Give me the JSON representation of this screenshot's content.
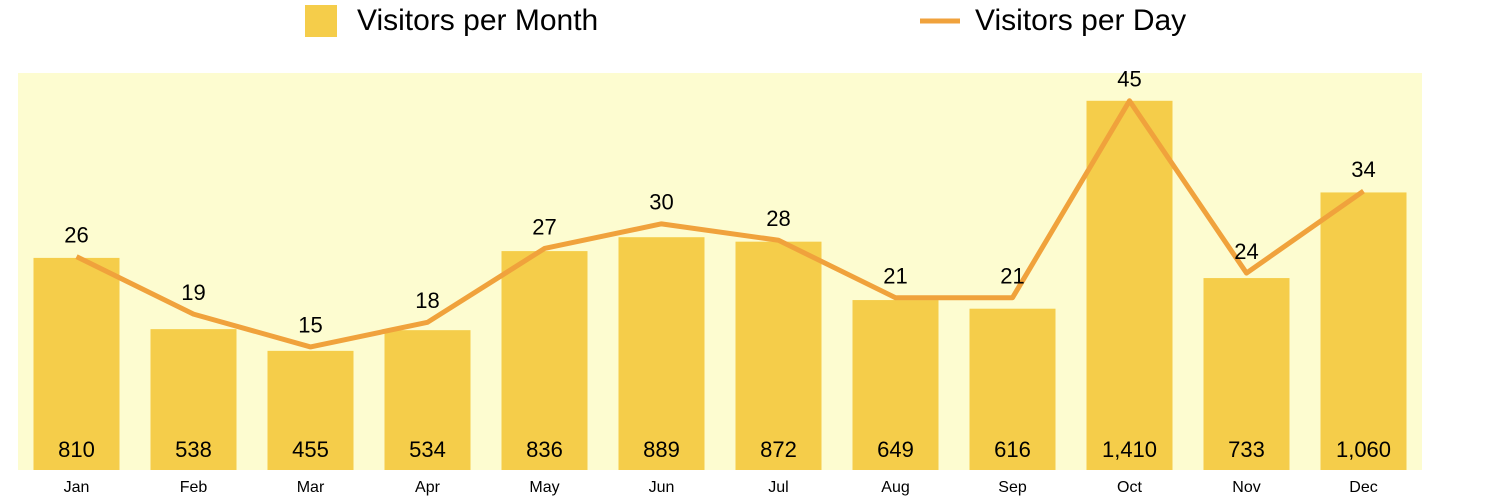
{
  "chart_data": {
    "type": "bar",
    "categories": [
      "Jan",
      "Feb",
      "Mar",
      "Apr",
      "May",
      "Jun",
      "Jul",
      "Aug",
      "Sep",
      "Oct",
      "Nov",
      "Dec"
    ],
    "series": [
      {
        "name": "Visitors per Month",
        "type": "bar",
        "color": "#f5cd4a",
        "values": [
          810,
          538,
          455,
          534,
          836,
          889,
          872,
          649,
          616,
          1410,
          733,
          1060
        ],
        "value_labels": [
          "810",
          "538",
          "455",
          "534",
          "836",
          "889",
          "872",
          "649",
          "616",
          "1,410",
          "733",
          "1,060"
        ]
      },
      {
        "name": "Visitors per Day",
        "type": "line",
        "color": "#f0a23c",
        "axis": "y2",
        "values": [
          26,
          19,
          15,
          18,
          27,
          30,
          28,
          21,
          21,
          45,
          24,
          34
        ]
      }
    ],
    "background": "#fdfcd0"
  }
}
